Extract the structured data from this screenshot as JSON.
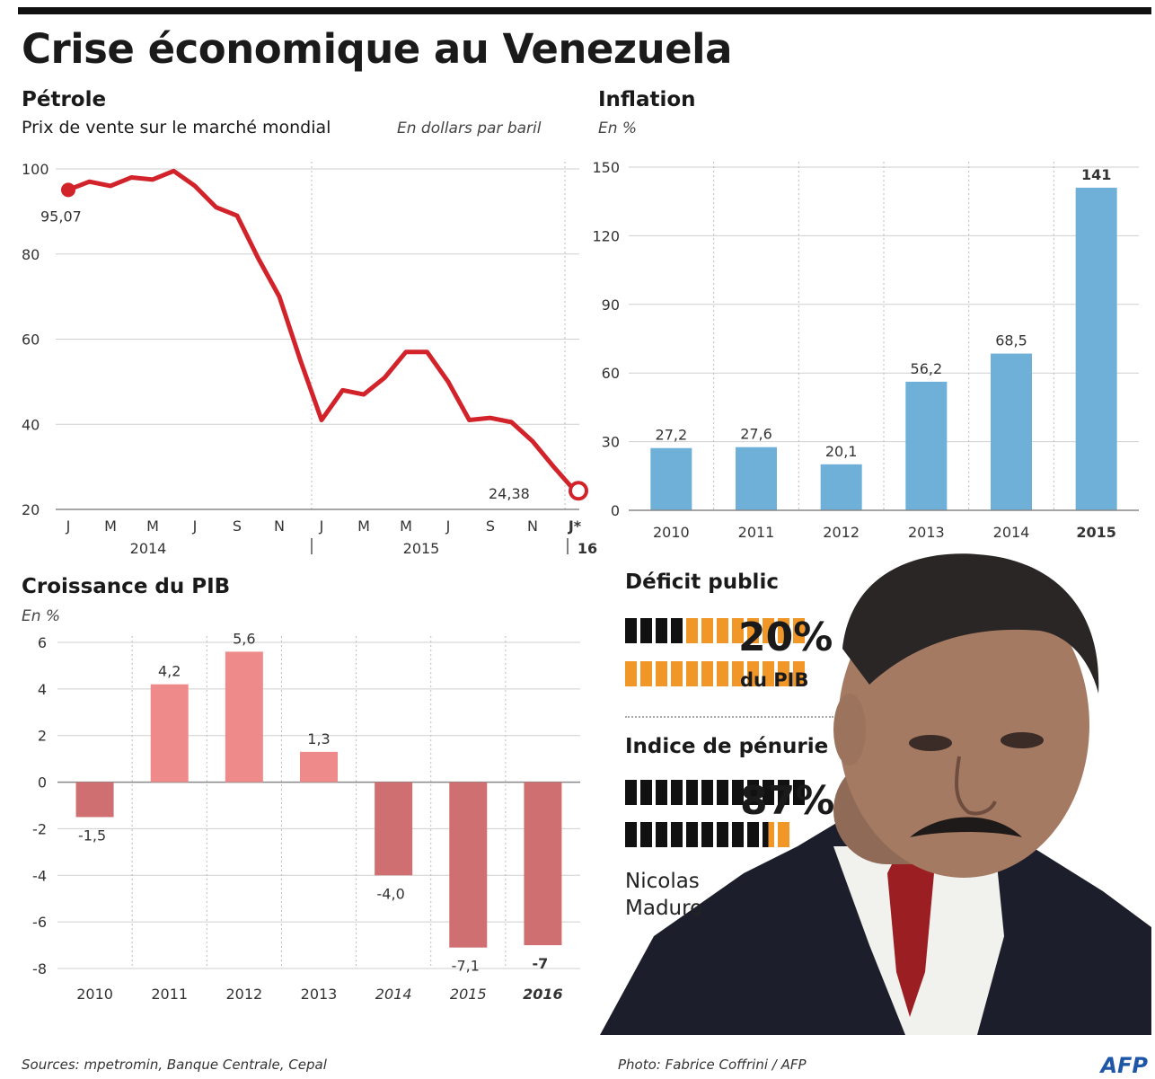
{
  "title": "Crise économique au Venezuela",
  "petrole": {
    "title": "Pétrole",
    "subtitle": "Prix de vente sur le marché mondial",
    "unit": "En dollars par baril"
  },
  "inflation": {
    "title": "Inflation",
    "unit": "En %"
  },
  "pib": {
    "title": "Croissance du PIB",
    "unit": "En %"
  },
  "deficit": {
    "title": "Déficit public",
    "value": "20%",
    "label": "du PIB",
    "fraction": 0.2
  },
  "penurie": {
    "title": "Indice de pénurie",
    "value": "87%",
    "fraction": 0.87
  },
  "person": "Nicolas Maduro",
  "sources": "Sources: mpetromin, Banque Centrale, Cepal",
  "photo_credit": "Photo: Fabrice Coffrini / AFP",
  "logo": "AFP",
  "colors": {
    "oil": "#d2222a",
    "inflation": "#6fb0d8",
    "pib_pos": "#ef8a8a",
    "pib_neg": "#cf6f71",
    "orange": "#f09728"
  },
  "chart_data": [
    {
      "type": "line",
      "x": [
        "2014-01",
        "2014-02",
        "2014-03",
        "2014-04",
        "2014-05",
        "2014-06",
        "2014-07",
        "2014-08",
        "2014-09",
        "2014-10",
        "2014-11",
        "2014-12",
        "2015-01",
        "2015-02",
        "2015-03",
        "2015-04",
        "2015-05",
        "2015-06",
        "2015-07",
        "2015-08",
        "2015-09",
        "2015-10",
        "2015-11",
        "2015-12",
        "2016-01"
      ],
      "values": [
        95.07,
        97,
        96,
        98,
        97.5,
        99.5,
        96,
        91,
        89,
        79,
        70,
        55,
        41,
        48,
        47,
        51,
        57,
        57,
        50,
        41,
        41.5,
        40.5,
        36,
        30,
        24.38
      ],
      "x_ticks": [
        "J",
        "M",
        "M",
        "J",
        "S",
        "N",
        "J",
        "M",
        "M",
        "J",
        "S",
        "N",
        "J*"
      ],
      "years": [
        "2014",
        "2015",
        "16"
      ],
      "labels": {
        "start": "95,07",
        "end": "24,38"
      },
      "ylim": [
        20,
        100
      ],
      "yticks": [
        "20",
        "40",
        "60",
        "80",
        "100"
      ]
    },
    {
      "type": "bar",
      "categories": [
        "2010",
        "2011",
        "2012",
        "2013",
        "2014",
        "2015"
      ],
      "values": [
        27.2,
        27.6,
        20.1,
        56.2,
        68.5,
        141
      ],
      "value_labels": [
        "27,2",
        "27,6",
        "20,1",
        "56,2",
        "68,5",
        "141"
      ],
      "ylim": [
        0,
        150
      ],
      "yticks": [
        "0",
        "30",
        "60",
        "90",
        "120",
        "150"
      ]
    },
    {
      "type": "bar",
      "categories": [
        "2010",
        "2011",
        "2012",
        "2013",
        "2014",
        "2015",
        "2016"
      ],
      "values": [
        -1.5,
        4.2,
        5.6,
        1.3,
        -4.0,
        -7.1,
        -7
      ],
      "value_labels": [
        "-1,5",
        "4,2",
        "5,6",
        "1,3",
        "-4,0",
        "-7,1",
        "-7"
      ],
      "ylim": [
        -8,
        6
      ],
      "yticks": [
        "-8",
        "-6",
        "-4",
        "-2",
        "0",
        "2",
        "4",
        "6"
      ]
    }
  ]
}
